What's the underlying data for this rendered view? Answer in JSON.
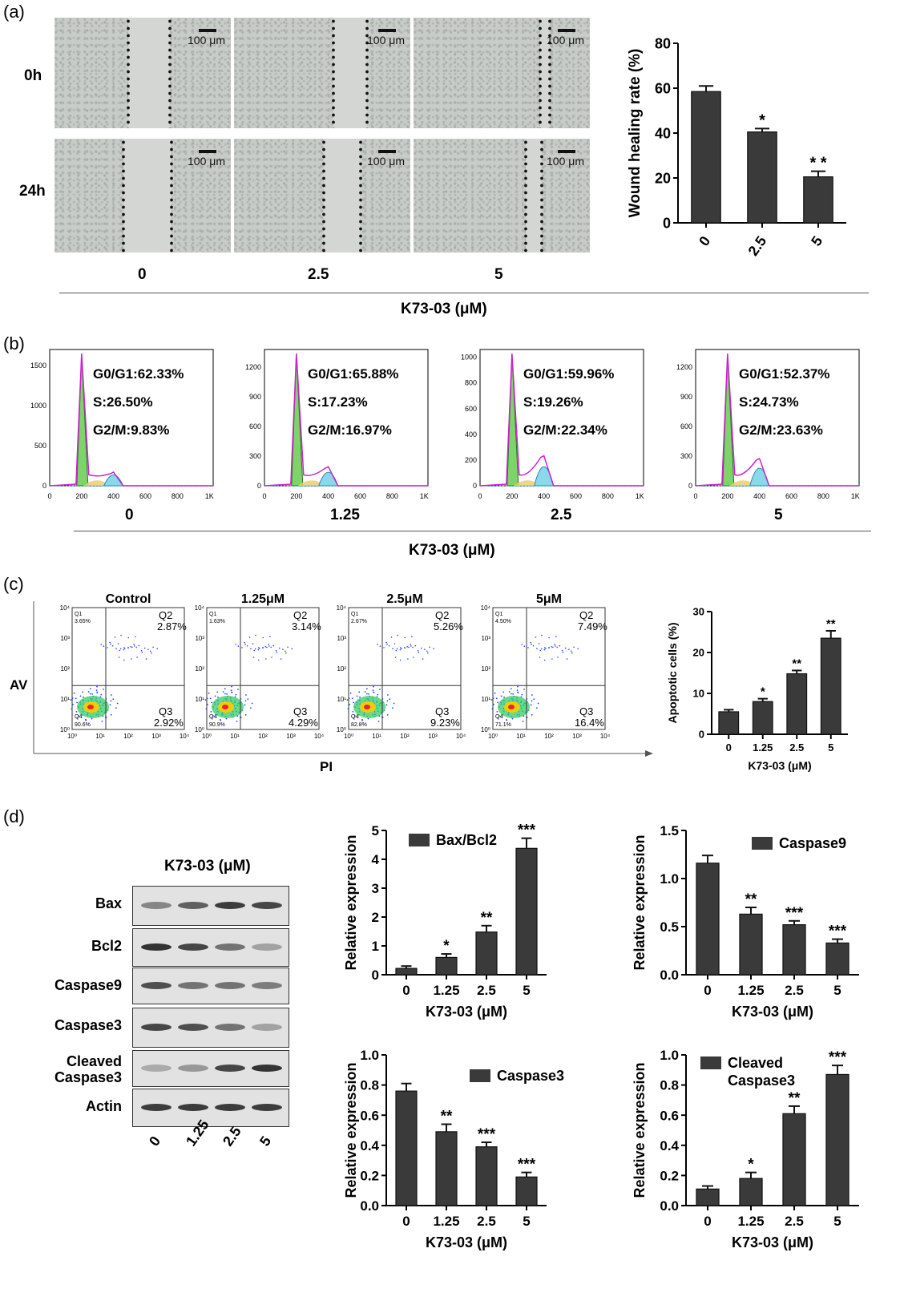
{
  "panel_a": {
    "letter": "(a)",
    "row_labels": [
      "0h",
      "24h"
    ],
    "scale_bar": "100 μm",
    "conc_labels": [
      "0",
      "2.5",
      "5"
    ],
    "axis_title": "K73-03 (μM)"
  },
  "panel_b": {
    "letter": "(b)",
    "xlabel": "K73-03 (μM)",
    "x_ticks": [
      "0",
      "200",
      "400",
      "600",
      "800",
      "1K"
    ],
    "histograms": [
      {
        "conc": "0",
        "g0g1": "G0/G1:62.33%",
        "s": "S:26.50%",
        "g2m": "G2/M:9.83%",
        "y_ticks": [
          "0",
          "500",
          "1000",
          "1500"
        ],
        "ymax": 1700
      },
      {
        "conc": "1.25",
        "g0g1": "G0/G1:65.88%",
        "s": "S:17.23%",
        "g2m": "G2/M:16.97%",
        "y_ticks": [
          "0",
          "300",
          "600",
          "900",
          "1200"
        ],
        "ymax": 1380
      },
      {
        "conc": "2.5",
        "g0g1": "G0/G1:59.96%",
        "s": "S:19.26%",
        "g2m": "G2/M:22.34%",
        "y_ticks": [
          "0",
          "200",
          "400",
          "600",
          "800",
          "1000"
        ],
        "ymax": 1060
      },
      {
        "conc": "5",
        "g0g1": "G0/G1:52.37%",
        "s": "S:24.73%",
        "g2m": "G2/M:23.63%",
        "y_ticks": [
          "0",
          "300",
          "600",
          "900",
          "1200"
        ],
        "ymax": 1380
      }
    ]
  },
  "panel_c": {
    "letter": "(c)",
    "ylabel": "AV",
    "xlabel": "PI",
    "log_ticks": [
      "10⁰",
      "10¹",
      "10²",
      "10³",
      "10⁴"
    ],
    "plots": [
      {
        "title": "Control",
        "q1": "3.65%",
        "q2": "2.87%",
        "q3": "2.92%",
        "q4": "90.6%"
      },
      {
        "title": "1.25μM",
        "q1": "1.63%",
        "q2": "3.14%",
        "q3": "4.29%",
        "q4": "90.9%"
      },
      {
        "title": "2.5μM",
        "q1": "2.67%",
        "q2": "5.26%",
        "q3": "9.23%",
        "q4": "82.8%"
      },
      {
        "title": "5μM",
        "q1": "4.50%",
        "q2": "7.49%",
        "q3": "16.4%",
        "q4": "71.1%"
      }
    ],
    "quadrant_names": {
      "q1": "Q1",
      "q2": "Q2",
      "q3": "Q3",
      "q4": "Q4"
    }
  },
  "panel_d": {
    "letter": "(d)",
    "blot_title": "K73-03 (μM)",
    "blot_rows": [
      "Bax",
      "Bcl2",
      "Caspase9",
      "Caspase3",
      "Cleaved Caspase3",
      "Actin"
    ],
    "blot_lanes": [
      "0",
      "1.25",
      "2.5",
      "5"
    ]
  },
  "colors": {
    "bar": "#3a3a3a",
    "g1_fill": "#7ed36b",
    "s_fill": "#e8d070",
    "g2_fill": "#8ad8ec",
    "outline": "#cc22cc"
  },
  "chart_data": [
    {
      "id": "wound",
      "type": "bar",
      "categories": [
        "0",
        "2.5",
        "5"
      ],
      "values": [
        58.5,
        40.5,
        20.5
      ],
      "errors": [
        2.5,
        1.5,
        2.5
      ],
      "sig": [
        "",
        "*",
        "* *"
      ],
      "ylabel": "Wound healing rate (%)",
      "xlabel": "",
      "ylim": [
        0,
        80
      ],
      "yticks": [
        "0",
        "20",
        "40",
        "60",
        "80"
      ],
      "rotate_ticks": true
    },
    {
      "id": "apoptotic",
      "type": "bar",
      "categories": [
        "0",
        "1.25",
        "2.5",
        "5"
      ],
      "values": [
        5.5,
        8.0,
        14.8,
        23.5
      ],
      "errors": [
        0.5,
        0.7,
        0.8,
        1.8
      ],
      "sig": [
        "",
        "*",
        "**",
        "**"
      ],
      "ylabel": "Apoptotic cells (%)",
      "xlabel": "K73-03 (μM)",
      "ylim": [
        0,
        30
      ],
      "yticks": [
        "0",
        "10",
        "20",
        "30"
      ]
    },
    {
      "id": "baxbcl2",
      "type": "bar",
      "categories": [
        "0",
        "1.25",
        "2.5",
        "5"
      ],
      "values": [
        0.22,
        0.6,
        1.48,
        4.38
      ],
      "errors": [
        0.08,
        0.12,
        0.22,
        0.35
      ],
      "sig": [
        "",
        "*",
        "**",
        "***"
      ],
      "legend": "Bax/Bcl2",
      "ylabel": "Relative expression",
      "xlabel": "K73-03 (μM)",
      "ylim": [
        0,
        5
      ],
      "yticks": [
        "0",
        "1",
        "2",
        "3",
        "4",
        "5"
      ]
    },
    {
      "id": "caspase9",
      "type": "bar",
      "categories": [
        "0",
        "1.25",
        "2.5",
        "5"
      ],
      "values": [
        1.16,
        0.63,
        0.52,
        0.33
      ],
      "errors": [
        0.08,
        0.07,
        0.04,
        0.04
      ],
      "sig": [
        "",
        "**",
        "***",
        "***"
      ],
      "legend": "Caspase9",
      "ylabel": "Relative expression",
      "xlabel": "K73-03 (μM)",
      "ylim": [
        0,
        1.5
      ],
      "yticks": [
        "0.0",
        "0.5",
        "1.0",
        "1.5"
      ]
    },
    {
      "id": "caspase3",
      "type": "bar",
      "categories": [
        "0",
        "1.25",
        "2.5",
        "5"
      ],
      "values": [
        0.76,
        0.49,
        0.39,
        0.19
      ],
      "errors": [
        0.05,
        0.05,
        0.03,
        0.03
      ],
      "sig": [
        "",
        "**",
        "***",
        "***"
      ],
      "legend": "Caspase3",
      "ylabel": "Relative expression",
      "xlabel": "K73-03 (μM)",
      "ylim": [
        0,
        1.0
      ],
      "yticks": [
        "0.0",
        "0.2",
        "0.4",
        "0.6",
        "0.8",
        "1.0"
      ]
    },
    {
      "id": "cleaved",
      "type": "bar",
      "categories": [
        "0",
        "1.25",
        "2.5",
        "5"
      ],
      "values": [
        0.11,
        0.18,
        0.61,
        0.87
      ],
      "errors": [
        0.02,
        0.04,
        0.05,
        0.06
      ],
      "sig": [
        "",
        "*",
        "**",
        "***"
      ],
      "legend": "Cleaved Caspase3",
      "ylabel": "Relative expression",
      "xlabel": "K73-03 (μM)",
      "ylim": [
        0,
        1.0
      ],
      "yticks": [
        "0.0",
        "0.2",
        "0.4",
        "0.6",
        "0.8",
        "1.0"
      ]
    }
  ]
}
